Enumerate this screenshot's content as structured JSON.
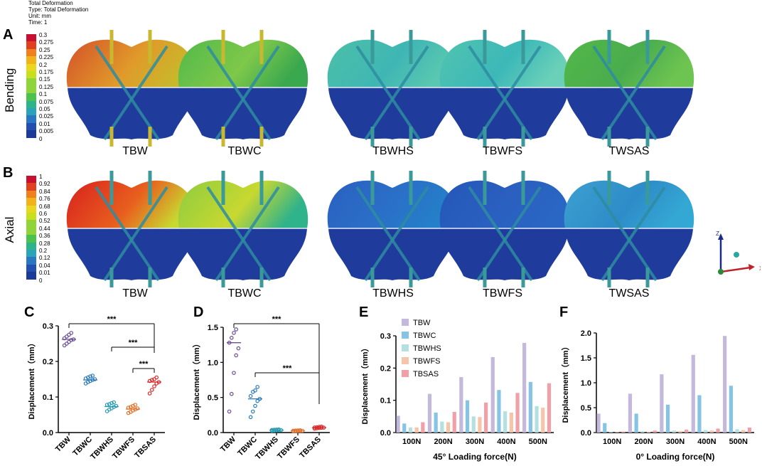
{
  "header": {
    "lines": [
      "Total Deformation",
      "Type: Total Deformation",
      "Unit: mm",
      "Time: 1"
    ]
  },
  "panels": {
    "A": "A",
    "B": "B",
    "C": "C",
    "D": "D",
    "E": "E",
    "F": "F"
  },
  "rows": {
    "bending": "Bending",
    "axial": "Axial"
  },
  "models": [
    "TBW",
    "TBWC",
    "TBWHS",
    "TBWFS",
    "TWSAS"
  ],
  "colormap": [
    "#c8102e",
    "#e0401e",
    "#f0801e",
    "#f2b21a",
    "#e8d71e",
    "#c7e01e",
    "#8fd43a",
    "#4cc24e",
    "#2fb38a",
    "#2ba3b8",
    "#2a78c4",
    "#2350b0",
    "#1c3a98"
  ],
  "legend_bending": [
    "0.3",
    "0.275",
    "0.25",
    "0.225",
    "0.2",
    "0.175",
    "0.15",
    "0.125",
    "0.1",
    "0.075",
    "0.05",
    "0.025",
    "0.01",
    "0.005",
    "0"
  ],
  "legend_axial": [
    "1",
    "0.92",
    "0.84",
    "0.76",
    "0.68",
    "0.6",
    "0.52",
    "0.44",
    "0.36",
    "0.28",
    "0.2",
    "0.12",
    "0.04",
    "0.01",
    "0"
  ],
  "model_colors": {
    "bending": [
      [
        "#d4502a",
        "#e09a2a",
        "#c8b82a"
      ],
      [
        "#52b84a",
        "#7ec84a",
        "#3aa84e"
      ],
      [
        "#4cc0a8",
        "#3fb6b4",
        "#5ac8b0"
      ],
      [
        "#52c4b0",
        "#3cb8b8",
        "#6ad0b8"
      ],
      [
        "#52b848",
        "#4aac4e",
        "#6ec450"
      ]
    ],
    "axial": [
      [
        "#d8201e",
        "#e8601e",
        "#c8d830"
      ],
      [
        "#8ccc40",
        "#c8d830",
        "#2fb38a"
      ],
      [
        "#2a60c0",
        "#2a70c8",
        "#2480c8"
      ],
      [
        "#2456b8",
        "#2a60c0",
        "#2a66c4"
      ],
      [
        "#3ca0d0",
        "#2e8cc8",
        "#34a8d4"
      ]
    ],
    "lower": "#1f3c9c"
  },
  "axes_icon": {
    "z": "Z",
    "x": "X"
  },
  "chart_data": [
    {
      "id": "C",
      "type": "scatter",
      "ylabel": "Displacement（mm）",
      "ylim": [
        0,
        0.3
      ],
      "yticks": [
        "0.0",
        "0.1",
        "0.2",
        "0.3"
      ],
      "categories": [
        "TBW",
        "TBWC",
        "TBWHS",
        "TBWFS",
        "TBSAS"
      ],
      "colors": [
        "#6a4c93",
        "#2a7ab8",
        "#2a9bb0",
        "#e0702a",
        "#d62828"
      ],
      "means": [
        0.262,
        0.148,
        0.073,
        0.066,
        0.142
      ],
      "points": [
        [
          0.245,
          0.25,
          0.255,
          0.26,
          0.262,
          0.265,
          0.27,
          0.275,
          0.28
        ],
        [
          0.138,
          0.142,
          0.145,
          0.148,
          0.15,
          0.152,
          0.155,
          0.158,
          0.16
        ],
        [
          0.06,
          0.065,
          0.068,
          0.072,
          0.075,
          0.078,
          0.08,
          0.083,
          0.085
        ],
        [
          0.055,
          0.058,
          0.062,
          0.065,
          0.068,
          0.07,
          0.072,
          0.075,
          0.078
        ],
        [
          0.11,
          0.12,
          0.13,
          0.138,
          0.142,
          0.145,
          0.148,
          0.15,
          0.155
        ]
      ],
      "significance": [
        {
          "from": 0,
          "to": 4,
          "label": "***"
        },
        {
          "from": 2,
          "to": 4,
          "label": "***"
        },
        {
          "from": 3,
          "to": 4,
          "label": "***"
        }
      ]
    },
    {
      "id": "D",
      "type": "scatter",
      "ylabel": "Displacement（mm）",
      "ylim": [
        0,
        1.5
      ],
      "yticks": [
        "0.0",
        "0.5",
        "1.0",
        "1.5"
      ],
      "categories": [
        "TBW",
        "TBWC",
        "TBWHS",
        "TBWFS",
        "TBSAS"
      ],
      "colors": [
        "#6a4c93",
        "#2a7ab8",
        "#2a9bb0",
        "#e0702a",
        "#d62828"
      ],
      "means": [
        1.28,
        0.48,
        0.035,
        0.025,
        0.07
      ],
      "points": [
        [
          0.3,
          0.55,
          0.85,
          1.1,
          1.2,
          1.28,
          1.35,
          1.42,
          1.47
        ],
        [
          0.22,
          0.3,
          0.38,
          0.45,
          0.48,
          0.52,
          0.58,
          0.6,
          0.65
        ],
        [
          0.025,
          0.028,
          0.03,
          0.033,
          0.035,
          0.037,
          0.04,
          0.042,
          0.045
        ],
        [
          0.018,
          0.02,
          0.022,
          0.024,
          0.025,
          0.026,
          0.028,
          0.03,
          0.032
        ],
        [
          0.055,
          0.06,
          0.064,
          0.068,
          0.07,
          0.072,
          0.076,
          0.08,
          0.085
        ]
      ],
      "significance": [
        {
          "from": 0,
          "to": 4,
          "label": "***"
        },
        {
          "from": 1,
          "to": 4,
          "label": "***"
        }
      ]
    },
    {
      "id": "E",
      "type": "bar",
      "xlabel": "45° Loading force(N)",
      "ylabel": "Displacement（mm）",
      "ylim": [
        0,
        0.3
      ],
      "yticks": [
        "0.0",
        "0.1",
        "0.2",
        "0.3"
      ],
      "categories": [
        "100N",
        "200N",
        "300N",
        "400N",
        "500N"
      ],
      "series": [
        {
          "name": "TBW",
          "color": "#c4b8dc",
          "values": [
            0.052,
            0.12,
            0.172,
            0.234,
            0.278
          ]
        },
        {
          "name": "TBWC",
          "color": "#86c4e6",
          "values": [
            0.028,
            0.062,
            0.1,
            0.132,
            0.157
          ]
        },
        {
          "name": "TBWHS",
          "color": "#b4e0e0",
          "values": [
            0.016,
            0.034,
            0.05,
            0.066,
            0.082
          ]
        },
        {
          "name": "TBWFS",
          "color": "#f6c4a8",
          "values": [
            0.016,
            0.032,
            0.048,
            0.062,
            0.077
          ]
        },
        {
          "name": "TBSAS",
          "color": "#f2a0a8",
          "values": [
            0.032,
            0.064,
            0.093,
            0.123,
            0.153
          ]
        }
      ]
    },
    {
      "id": "F",
      "type": "bar",
      "xlabel": "0° Loading force(N)",
      "ylabel": "Displacement（mm）",
      "ylim": [
        0,
        2.0
      ],
      "yticks": [
        "0.0",
        "0.5",
        "1.0",
        "1.5",
        "2.0"
      ],
      "categories": [
        "100N",
        "200N",
        "300N",
        "400N",
        "500N"
      ],
      "series": [
        {
          "name": "TBW",
          "color": "#c4b8dc",
          "values": [
            0.38,
            0.78,
            1.17,
            1.56,
            1.94
          ]
        },
        {
          "name": "TBWC",
          "color": "#86c4e6",
          "values": [
            0.19,
            0.38,
            0.56,
            0.75,
            0.94
          ]
        },
        {
          "name": "TBWHS",
          "color": "#b4e0e0",
          "values": [
            0.01,
            0.025,
            0.04,
            0.05,
            0.065
          ]
        },
        {
          "name": "TBWFS",
          "color": "#f6c4a8",
          "values": [
            0.008,
            0.018,
            0.028,
            0.04,
            0.05
          ]
        },
        {
          "name": "TBSAS",
          "color": "#f2a0a8",
          "values": [
            0.02,
            0.04,
            0.06,
            0.08,
            0.1
          ]
        }
      ]
    }
  ]
}
